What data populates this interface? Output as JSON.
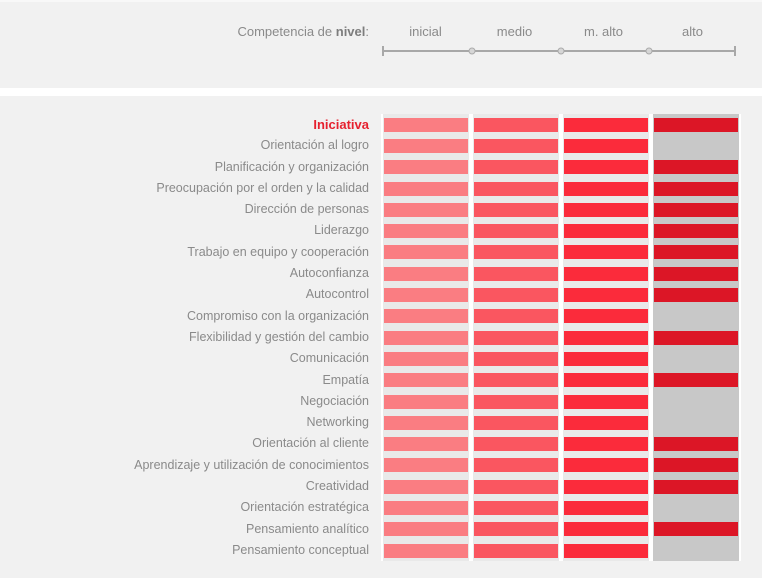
{
  "header": {
    "caption_prefix": "Competencia de ",
    "caption_bold": "nivel",
    "caption_suffix": ":",
    "levels": [
      "inicial",
      "medio",
      "m. alto",
      "alto"
    ]
  },
  "chart_data": {
    "type": "heatmap",
    "title": "Competencia de nivel",
    "level_scale": [
      "inicial",
      "medio",
      "m. alto",
      "alto"
    ],
    "legend_position": "top",
    "highlighted_competency": "Iniciativa",
    "competencies": [
      {
        "name": "Iniciativa",
        "level": 4,
        "level_label": "alto",
        "highlighted": true
      },
      {
        "name": "Orientación al logro",
        "level": 3,
        "level_label": "m. alto",
        "highlighted": false
      },
      {
        "name": "Planificación y organización",
        "level": 4,
        "level_label": "alto",
        "highlighted": false
      },
      {
        "name": "Preocupación por el orden y la calidad",
        "level": 4,
        "level_label": "alto",
        "highlighted": false
      },
      {
        "name": "Dirección de personas",
        "level": 4,
        "level_label": "alto",
        "highlighted": false
      },
      {
        "name": "Liderazgo",
        "level": 4,
        "level_label": "alto",
        "highlighted": false
      },
      {
        "name": "Trabajo en equipo y cooperación",
        "level": 4,
        "level_label": "alto",
        "highlighted": false
      },
      {
        "name": "Autoconfianza",
        "level": 4,
        "level_label": "alto",
        "highlighted": false
      },
      {
        "name": "Autocontrol",
        "level": 4,
        "level_label": "alto",
        "highlighted": false
      },
      {
        "name": "Compromiso con la organización",
        "level": 3,
        "level_label": "m. alto",
        "highlighted": false
      },
      {
        "name": "Flexibilidad y gestión del cambio",
        "level": 4,
        "level_label": "alto",
        "highlighted": false
      },
      {
        "name": "Comunicación",
        "level": 3,
        "level_label": "m. alto",
        "highlighted": false
      },
      {
        "name": "Empatía",
        "level": 4,
        "level_label": "alto",
        "highlighted": false
      },
      {
        "name": "Negociación",
        "level": 3,
        "level_label": "m. alto",
        "highlighted": false
      },
      {
        "name": "Networking",
        "level": 3,
        "level_label": "m. alto",
        "highlighted": false
      },
      {
        "name": "Orientación al cliente",
        "level": 4,
        "level_label": "alto",
        "highlighted": false
      },
      {
        "name": "Aprendizaje y utilización de conocimientos",
        "level": 4,
        "level_label": "alto",
        "highlighted": false
      },
      {
        "name": "Creatividad",
        "level": 4,
        "level_label": "alto",
        "highlighted": false
      },
      {
        "name": "Orientación estratégica",
        "level": 3,
        "level_label": "m. alto",
        "highlighted": false
      },
      {
        "name": "Pensamiento analítico",
        "level": 4,
        "level_label": "alto",
        "highlighted": false
      },
      {
        "name": "Pensamiento conceptual",
        "level": 3,
        "level_label": "m. alto",
        "highlighted": false
      }
    ]
  },
  "colors": {
    "level_bar_colors": [
      "#fa7d82",
      "#fa5660",
      "#fb2b3b",
      "#dc1626"
    ],
    "track_light": "#e9e9e9",
    "track_empty_gray": "#c8c8c8",
    "page_bg": "#f1f1f1",
    "divider_white": "#ffffff",
    "label_text": "#8a8a8a",
    "highlight_text": "#e6212f",
    "scale_line": "#a8a8a8",
    "scale_dot": "#d6d6d6"
  }
}
